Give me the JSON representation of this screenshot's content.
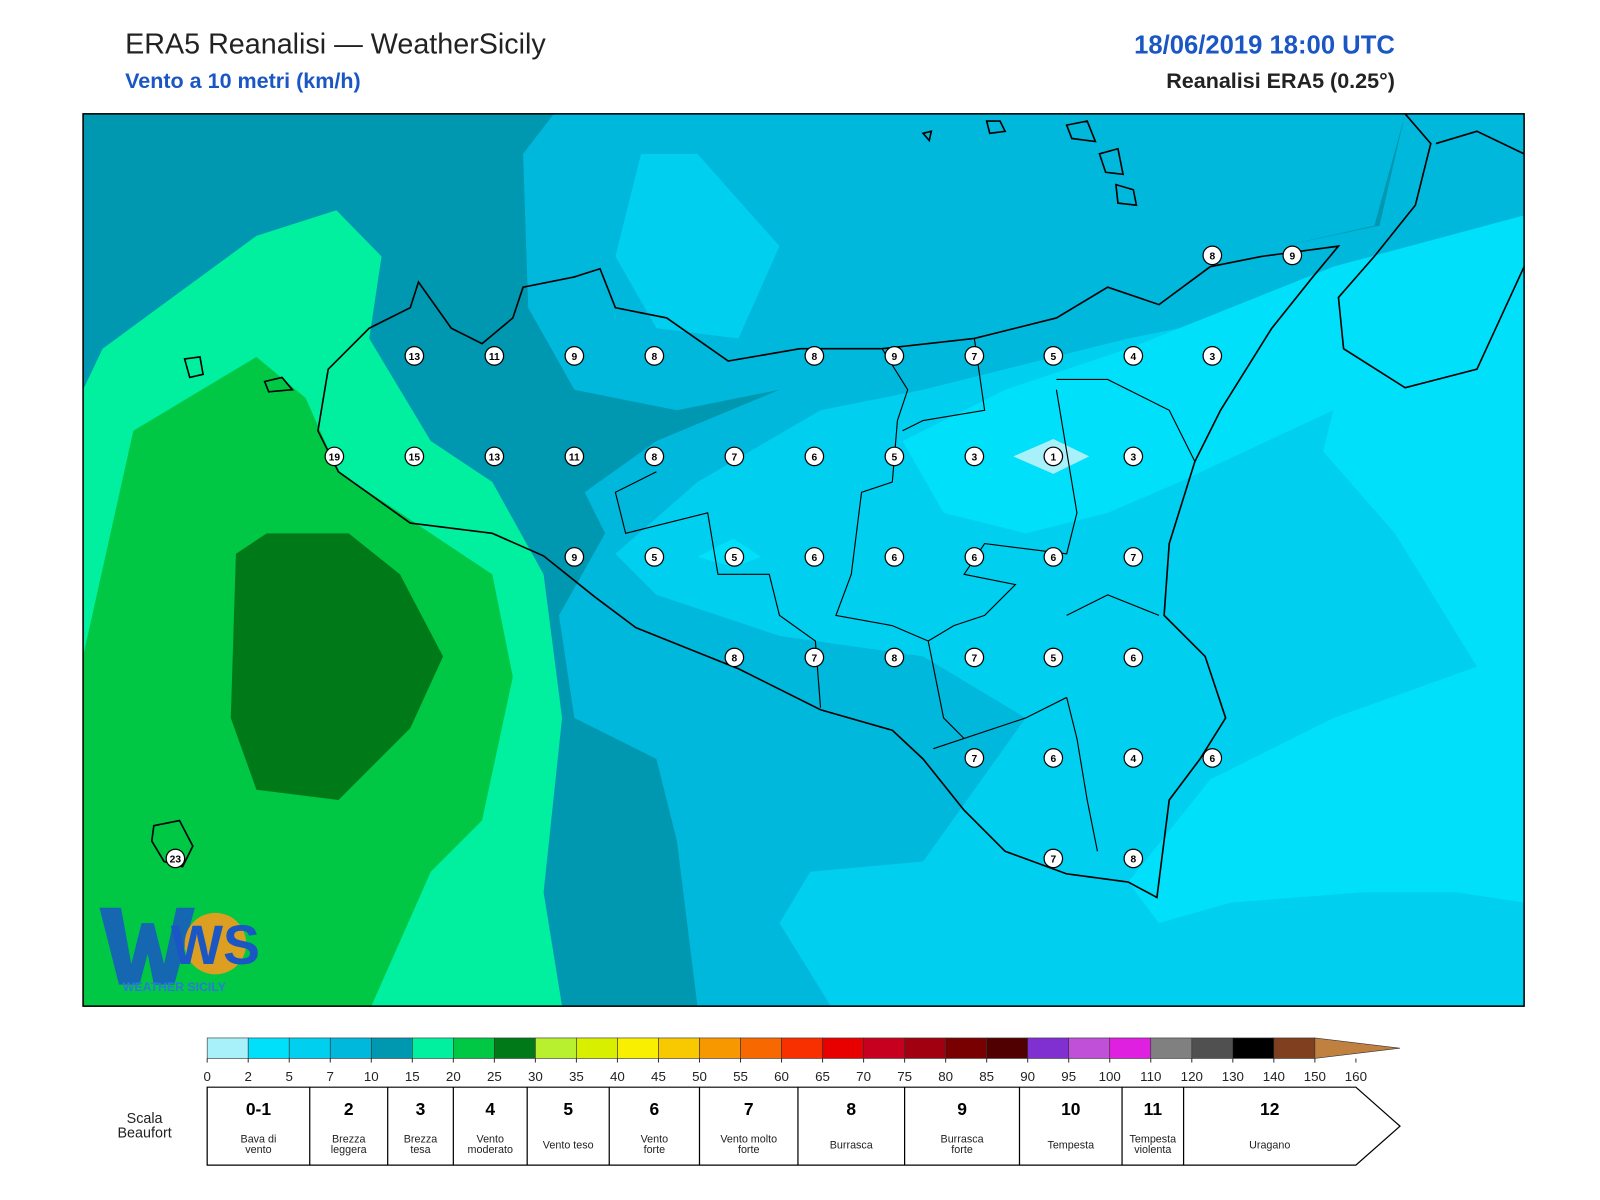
{
  "header": {
    "title": "ERA5 Reanalisi — WeatherSicily",
    "subtitle": "Vento a 10 metri (km/h)",
    "datetime": "18/06/2019 18:00 UTC",
    "source": "Reanalisi ERA5 (0.25°)"
  },
  "stations": [
    8,
    9,
    13,
    11,
    9,
    8,
    8,
    9,
    7,
    5,
    4,
    3,
    19,
    15,
    13,
    11,
    8,
    7,
    6,
    5,
    3,
    1,
    3,
    9,
    5,
    5,
    6,
    6,
    6,
    6,
    7,
    8,
    7,
    8,
    7,
    5,
    6,
    7,
    6,
    4,
    6,
    23,
    7,
    8
  ],
  "colorbar": {
    "ticks": [
      0,
      2,
      5,
      7,
      10,
      15,
      20,
      25,
      30,
      35,
      40,
      45,
      50,
      55,
      60,
      65,
      70,
      75,
      80,
      85,
      90,
      95,
      100,
      110,
      120,
      130,
      140,
      150,
      160
    ],
    "colors": [
      "#a8f0fa",
      "#00e0fa",
      "#00cff0",
      "#00b8dc",
      "#0097b0",
      "#00f0a0",
      "#00c845",
      "#007a18",
      "#b8f030",
      "#d8f000",
      "#f8f000",
      "#f8c800",
      "#f89800",
      "#f86800",
      "#f83000",
      "#e80000",
      "#c80020",
      "#a00010",
      "#780000",
      "#500000",
      "#8030d0",
      "#c050d8",
      "#e020e0",
      "#808080",
      "#505050",
      "#000000",
      "#804020",
      "#c08040"
    ]
  },
  "beaufort": {
    "title": [
      "Scala",
      "Beaufort"
    ],
    "levels": [
      {
        "force": "0-1",
        "label": [
          "Bava di",
          "vento"
        ]
      },
      {
        "force": 2,
        "label": [
          "Brezza",
          "leggera"
        ]
      },
      {
        "force": 3,
        "label": [
          "Brezza",
          "tesa"
        ]
      },
      {
        "force": 4,
        "label": [
          "Vento",
          "moderato"
        ]
      },
      {
        "force": 5,
        "label": [
          "Vento teso"
        ]
      },
      {
        "force": 6,
        "label": [
          "Vento",
          "forte"
        ]
      },
      {
        "force": 7,
        "label": [
          "Vento molto",
          "forte"
        ]
      },
      {
        "force": 8,
        "label": [
          "Burrasca"
        ]
      },
      {
        "force": 9,
        "label": [
          "Burrasca",
          "forte"
        ]
      },
      {
        "force": 10,
        "label": [
          "Tempesta"
        ]
      },
      {
        "force": 11,
        "label": [
          "Tempesta",
          "violenta"
        ]
      },
      {
        "force": 12,
        "label": [
          "Uragano"
        ]
      }
    ]
  },
  "logo": {
    "mark": "WS",
    "name": "WEATHER SICILY"
  }
}
